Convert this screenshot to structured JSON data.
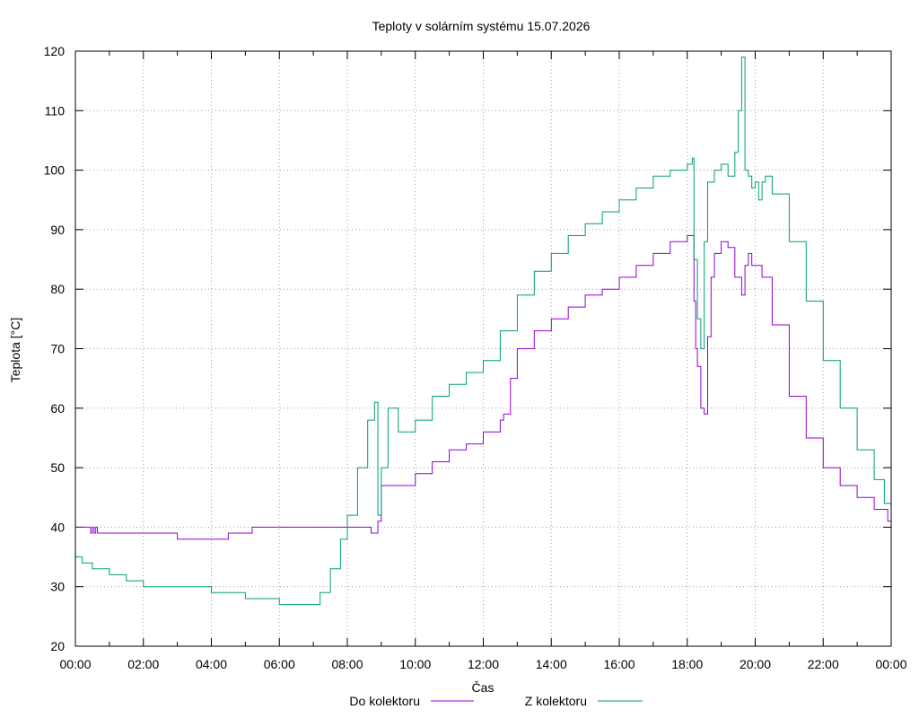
{
  "chart_data": {
    "type": "line",
    "title": "Teploty v solárním systému 15.07.2026",
    "xlabel": "Čas",
    "ylabel": "Teplota [°C]",
    "ylim": [
      20,
      120
    ],
    "yticks": [
      20,
      30,
      40,
      50,
      60,
      70,
      80,
      90,
      100,
      110,
      120
    ],
    "xlim_hours": [
      0,
      24
    ],
    "xticks": [
      "00:00",
      "02:00",
      "04:00",
      "06:00",
      "08:00",
      "10:00",
      "12:00",
      "14:00",
      "16:00",
      "18:00",
      "20:00",
      "22:00",
      "00:00"
    ],
    "grid": true,
    "legend_position": "bottom",
    "colors": {
      "do_kolektoru": "#9400d3",
      "z_kolektoru": "#009e73"
    },
    "series": [
      {
        "name": "Do kolektoru",
        "x": [
          0.0,
          0.4,
          0.45,
          0.5,
          0.55,
          0.6,
          0.65,
          1.0,
          2.0,
          2.9,
          3.0,
          4.0,
          4.3,
          4.5,
          5.0,
          5.2,
          5.5,
          6.0,
          7.0,
          7.5,
          8.0,
          8.4,
          8.7,
          8.85,
          8.9,
          9.0,
          9.5,
          10.0,
          10.5,
          11.0,
          11.5,
          12.0,
          12.5,
          12.6,
          12.8,
          13.0,
          13.5,
          14.0,
          14.5,
          15.0,
          15.5,
          16.0,
          16.5,
          17.0,
          17.5,
          18.0,
          18.1,
          18.2,
          18.25,
          18.3,
          18.4,
          18.5,
          18.6,
          18.7,
          18.8,
          19.0,
          19.2,
          19.4,
          19.6,
          19.7,
          19.8,
          19.9,
          20.0,
          20.2,
          20.5,
          21.0,
          21.5,
          22.0,
          22.5,
          23.0,
          23.5,
          23.9,
          24.0
        ],
        "y": [
          40,
          40,
          39,
          40,
          39,
          40,
          39,
          39,
          39,
          39,
          38,
          38,
          38,
          39,
          39,
          40,
          40,
          40,
          40,
          40,
          40,
          40,
          39,
          39,
          41,
          47,
          47,
          49,
          51,
          53,
          54,
          56,
          58,
          59,
          65,
          70,
          73,
          75,
          77,
          79,
          80,
          82,
          84,
          86,
          88,
          89,
          89,
          78,
          70,
          67,
          60,
          59,
          72,
          82,
          86,
          88,
          87,
          82,
          79,
          84,
          86,
          84,
          84,
          82,
          74,
          62,
          55,
          50,
          47,
          45,
          43,
          41,
          41
        ]
      },
      {
        "name": "Z kolektoru",
        "x": [
          0.0,
          0.2,
          0.5,
          1.0,
          1.5,
          2.0,
          3.0,
          4.0,
          4.3,
          5.0,
          5.5,
          6.0,
          6.5,
          7.0,
          7.2,
          7.5,
          7.8,
          8.0,
          8.3,
          8.6,
          8.8,
          8.9,
          9.0,
          9.2,
          9.5,
          10.0,
          10.5,
          11.0,
          11.5,
          12.0,
          12.5,
          13.0,
          13.5,
          14.0,
          14.5,
          15.0,
          15.5,
          16.0,
          16.5,
          17.0,
          17.5,
          18.0,
          18.1,
          18.15,
          18.2,
          18.3,
          18.4,
          18.5,
          18.6,
          18.8,
          19.0,
          19.2,
          19.4,
          19.5,
          19.6,
          19.7,
          19.8,
          19.9,
          20.0,
          20.1,
          20.2,
          20.3,
          20.5,
          21.0,
          21.5,
          22.0,
          22.5,
          23.0,
          23.5,
          23.8,
          24.0
        ],
        "y": [
          35,
          34,
          33,
          32,
          31,
          30,
          30,
          29,
          29,
          28,
          28,
          27,
          27,
          27,
          29,
          33,
          38,
          42,
          50,
          58,
          61,
          42,
          50,
          60,
          56,
          58,
          62,
          64,
          66,
          68,
          73,
          79,
          83,
          86,
          89,
          91,
          93,
          95,
          97,
          99,
          100,
          101,
          101,
          102,
          85,
          75,
          70,
          88,
          98,
          100,
          101,
          99,
          103,
          110,
          119,
          100,
          99,
          97,
          98,
          95,
          98,
          99,
          96,
          88,
          78,
          68,
          60,
          53,
          48,
          44,
          41
        ]
      }
    ]
  }
}
